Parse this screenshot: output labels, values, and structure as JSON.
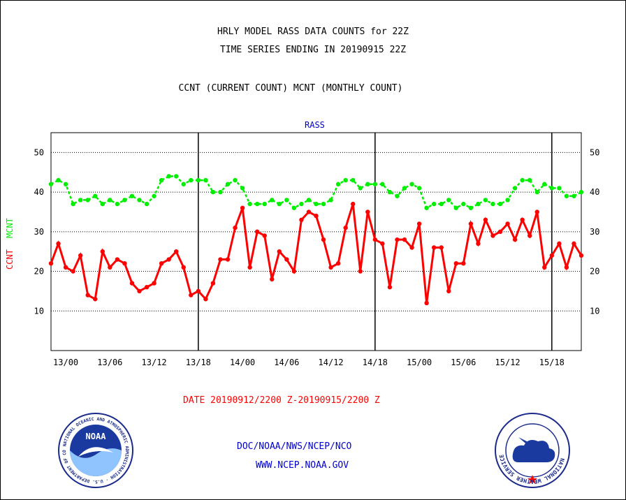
{
  "chart_data": {
    "type": "line",
    "title_lines": [
      "HRLY MODEL RASS DATA COUNTS for 22Z",
      "TIME SERIES ENDING IN 20190915 22Z"
    ],
    "subtitle": "CCNT (CURRENT COUNT) MCNT (MONTHLY COUNT)",
    "panel_label": "RASS",
    "ylabel_ccnt": "CCNT",
    "ylabel_mcnt": "MCNT",
    "xlabel": "DATE 20190912/2200 Z-20190915/2200 Z",
    "ylim": [
      0,
      55
    ],
    "yticks": [
      "10",
      "20",
      "30",
      "40",
      "50"
    ],
    "xticks": [
      {
        "label": "13/00",
        "x": 2
      },
      {
        "label": "13/06",
        "x": 8
      },
      {
        "label": "13/12",
        "x": 14
      },
      {
        "label": "13/18",
        "x": 20
      },
      {
        "label": "14/00",
        "x": 26
      },
      {
        "label": "14/06",
        "x": 32
      },
      {
        "label": "14/12",
        "x": 38
      },
      {
        "label": "14/18",
        "x": 44
      },
      {
        "label": "15/00",
        "x": 50
      },
      {
        "label": "15/06",
        "x": 56
      },
      {
        "label": "15/12",
        "x": 62
      },
      {
        "label": "15/18",
        "x": 68
      }
    ],
    "xlim": [
      0,
      72
    ],
    "day_markers_x": [
      20,
      44,
      68
    ],
    "grid_lines_y": [
      10,
      20,
      30,
      40,
      50
    ],
    "series": [
      {
        "name": "CCNT",
        "color": "#ff0000",
        "style": "solid",
        "values": [
          22,
          27,
          21,
          20,
          24,
          14,
          13,
          25,
          21,
          23,
          22,
          17,
          15,
          16,
          17,
          22,
          23,
          25,
          21,
          14,
          15,
          13,
          17,
          23,
          23,
          31,
          36,
          21,
          30,
          29,
          18,
          25,
          23,
          20,
          33,
          35,
          34,
          28,
          21,
          22,
          31,
          37,
          20,
          35,
          28,
          27,
          16,
          28,
          28,
          26,
          32,
          12,
          26,
          26,
          15,
          22,
          22,
          32,
          27,
          33,
          29,
          30,
          32,
          28,
          33,
          29,
          35,
          21,
          24,
          27,
          21,
          27,
          24
        ]
      },
      {
        "name": "MCNT",
        "color": "#00ee00",
        "style": "dashed",
        "values": [
          42,
          43,
          42,
          37,
          38,
          38,
          39,
          37,
          38,
          37,
          38,
          39,
          38,
          37,
          39,
          43,
          44,
          44,
          42,
          43,
          43,
          43,
          40,
          40,
          42,
          43,
          41,
          37,
          37,
          37,
          38,
          37,
          38,
          36,
          37,
          38,
          37,
          37,
          38,
          42,
          43,
          43,
          41,
          42,
          42,
          42,
          40,
          39,
          41,
          42,
          41,
          36,
          37,
          37,
          38,
          36,
          37,
          36,
          37,
          38,
          37,
          37,
          38,
          41,
          43,
          43,
          40,
          42,
          41,
          41,
          39,
          39,
          40
        ]
      }
    ]
  },
  "footer": {
    "org_line": "DOC/NOAA/NWS/NCEP/NCO",
    "url_line": "WWW.NCEP.NOAA.GOV",
    "noaa_logo_text": "NOAA",
    "noaa_ring_text": "NATIONAL OCEANIC AND ATMOSPHERIC ADMINISTRATION · U.S. DEPARTMENT OF COMMERCE ·",
    "nws_ring_text": "NATIONAL WEATHER SERVICE"
  }
}
